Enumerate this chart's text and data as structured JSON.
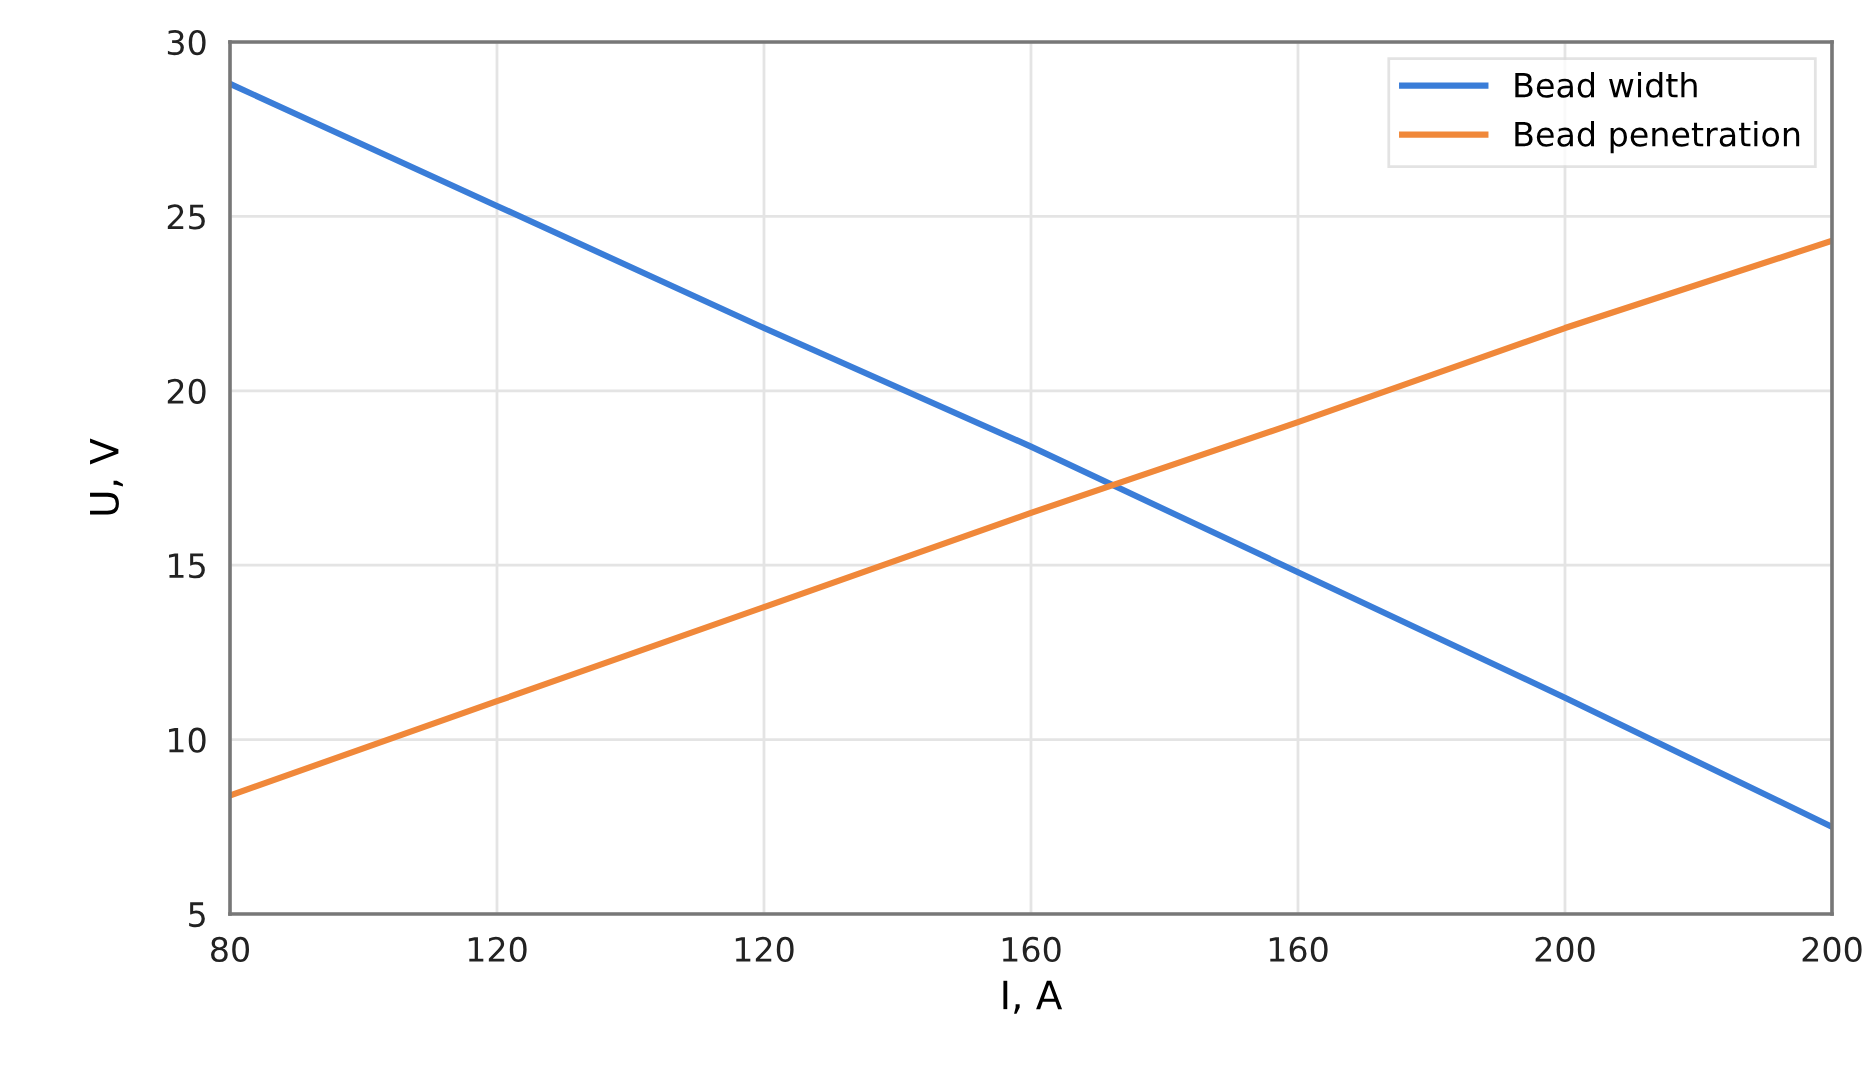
{
  "chart_data": {
    "type": "line",
    "xlabel": "I, A",
    "ylabel": "U, V",
    "categories": [
      "80",
      "120",
      "120",
      "160",
      "160",
      "200",
      "200"
    ],
    "series": [
      {
        "name": "Bead width",
        "color": "#3a7dd8",
        "values": [
          28.8,
          25.3,
          21.8,
          18.4,
          14.8,
          11.2,
          7.5
        ]
      },
      {
        "name": "Bead penetration",
        "color": "#f0883a",
        "values": [
          8.4,
          11.1,
          13.8,
          16.5,
          19.1,
          21.8,
          24.3
        ]
      }
    ],
    "ylim": [
      5,
      30
    ],
    "yticks": [
      5,
      10,
      15,
      20,
      25,
      30
    ],
    "grid": true,
    "legend": "top right",
    "marker": "none",
    "line_style": "solid"
  }
}
